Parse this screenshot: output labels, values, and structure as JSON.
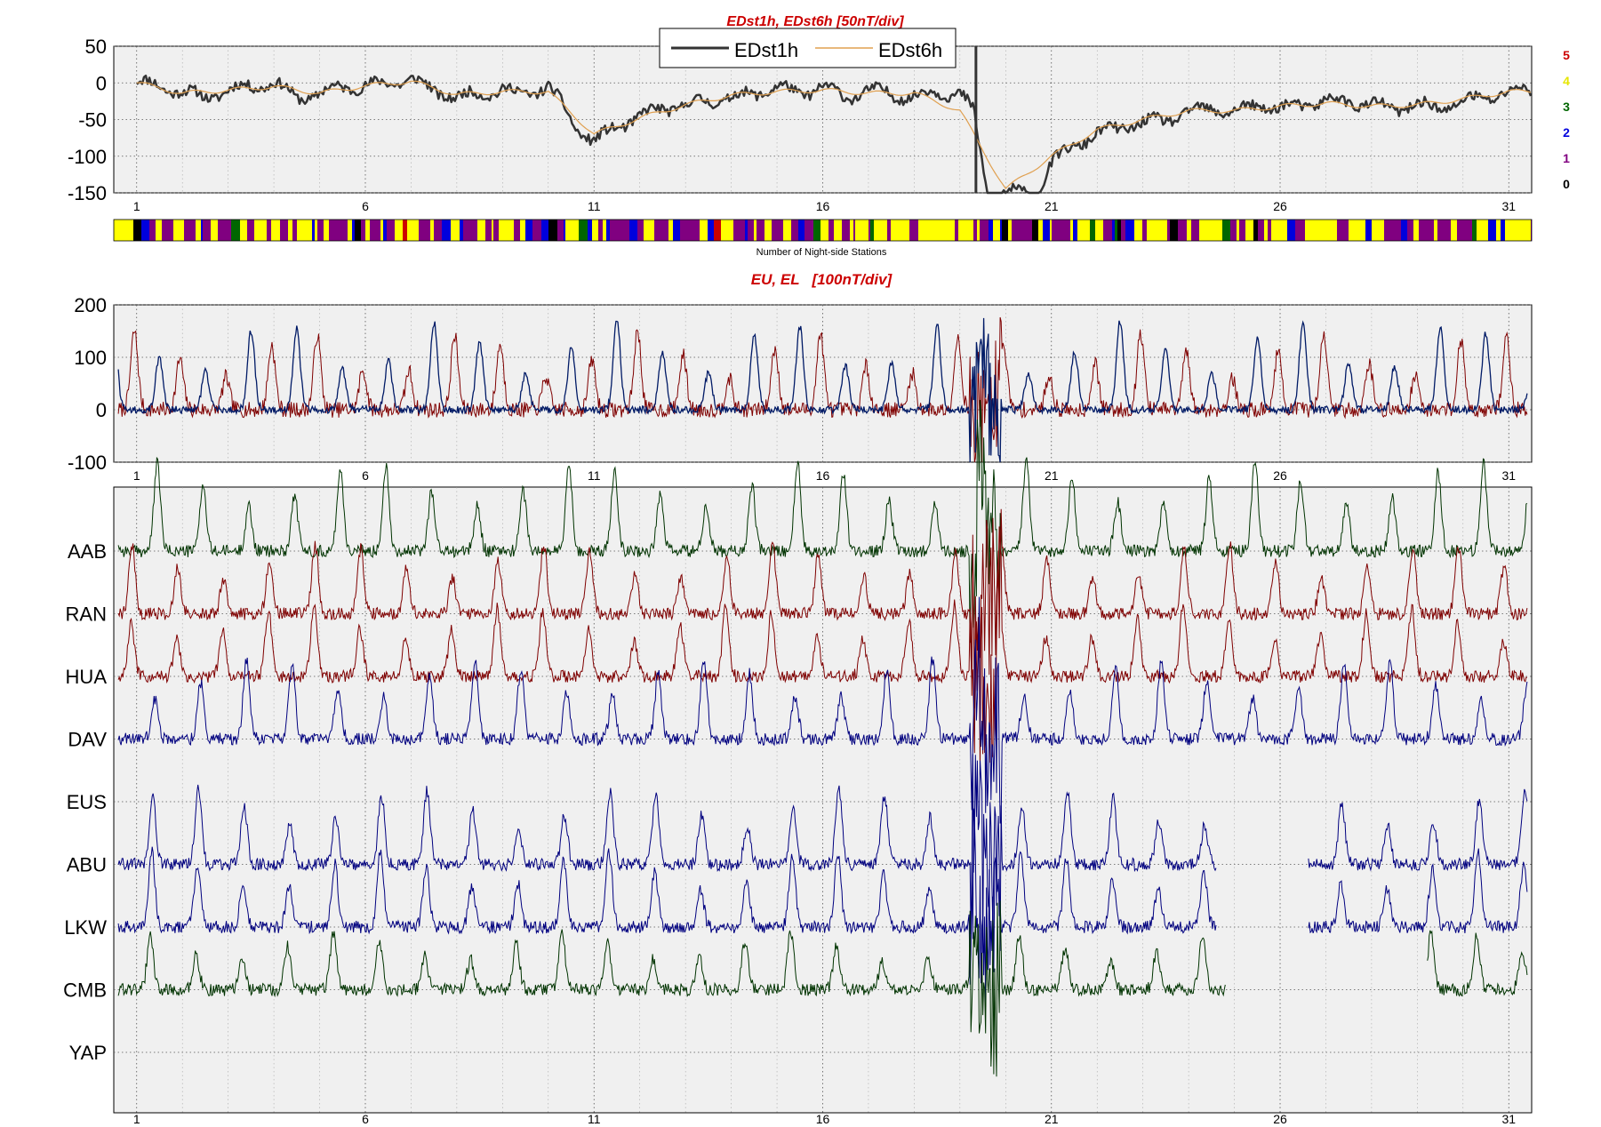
{
  "chart_data": [
    {
      "type": "line",
      "title": "EDst1h, EDst6h [50nT/div]",
      "x": [
        1,
        6,
        11,
        16,
        21,
        26,
        31
      ],
      "x_tick_labels": [
        "1",
        "6",
        "11",
        "16",
        "21",
        "26",
        "31"
      ],
      "xlim": [
        0.5,
        31.5
      ],
      "ylim": [
        -150,
        50
      ],
      "y_ticks": [
        50,
        0,
        -50,
        -100,
        -150
      ],
      "grid": true,
      "legend_placement": "top-center",
      "series": [
        {
          "name": "EDst1h",
          "color": "#333333",
          "x": [
            1,
            1.5,
            2,
            2.5,
            3,
            3.5,
            4,
            4.5,
            5,
            5.5,
            6,
            6.5,
            7,
            7.5,
            8,
            8.5,
            9,
            9.5,
            10,
            10.3,
            10.6,
            11,
            11.5,
            12,
            12.5,
            13,
            13.5,
            14,
            14.5,
            15,
            15.5,
            16,
            16.5,
            17,
            17.5,
            18,
            18.5,
            19,
            19.3,
            19.6,
            20,
            20.4,
            20.7,
            21,
            21.5,
            22,
            22.5,
            23,
            23.5,
            24,
            24.5,
            25,
            25.5,
            26,
            26.5,
            27,
            27.5,
            28,
            28.5,
            29,
            29.5,
            30,
            30.5,
            31,
            31.5
          ],
          "values": [
            2,
            -5,
            -12,
            -20,
            -10,
            -5,
            0,
            -20,
            -15,
            -5,
            -5,
            0,
            5,
            -10,
            -20,
            -15,
            -10,
            -15,
            -5,
            -30,
            -60,
            -80,
            -60,
            -45,
            -35,
            -30,
            -25,
            -20,
            -15,
            -5,
            -15,
            -5,
            -20,
            -10,
            -15,
            -20,
            -12,
            -15,
            -40,
            -150,
            -150,
            -150,
            -150,
            -110,
            -85,
            -70,
            -60,
            -55,
            -50,
            -40,
            -35,
            -40,
            -30,
            -35,
            -30,
            -25,
            -25,
            -30,
            -35,
            -30,
            -35,
            -25,
            -20,
            -12,
            -10
          ]
        },
        {
          "name": "EDst6h",
          "color": "#e0a050",
          "x": [
            1,
            2,
            3,
            4,
            5,
            6,
            7,
            8,
            9,
            10,
            11,
            12,
            13,
            14,
            15,
            16,
            17,
            18,
            19,
            20,
            21,
            22,
            23,
            24,
            25,
            26,
            27,
            28,
            29,
            30,
            31
          ],
          "values": [
            0,
            -14,
            -10,
            -5,
            -14,
            -4,
            2,
            -16,
            -12,
            -12,
            -70,
            -48,
            -30,
            -17,
            -12,
            -10,
            -14,
            -14,
            -38,
            -145,
            -100,
            -64,
            -50,
            -38,
            -38,
            -32,
            -28,
            -32,
            -30,
            -22,
            -12
          ]
        }
      ],
      "colorbar": {
        "label": "Number of Night-side Stations",
        "levels": [
          {
            "label": "5",
            "color": "#cc0000"
          },
          {
            "label": "4",
            "color": "#ffff00"
          },
          {
            "label": "3",
            "color": "#006600"
          },
          {
            "label": "2",
            "color": "#0000dd"
          },
          {
            "label": "1",
            "color": "#800080"
          },
          {
            "label": "0",
            "color": "#000000"
          }
        ]
      }
    },
    {
      "type": "line",
      "title": "EU, EL   [100nT/div]",
      "x": [
        1,
        6,
        11,
        16,
        21,
        26,
        31
      ],
      "x_tick_labels": [
        "1",
        "6",
        "11",
        "16",
        "21",
        "26",
        "31"
      ],
      "xlim": [
        0.5,
        31.5
      ],
      "ylim": [
        -100,
        200
      ],
      "y_ticks": [
        200,
        100,
        0,
        -100
      ],
      "grid": true,
      "series": [
        {
          "color": "#7f0000",
          "daily_peak_nT": 150
        },
        {
          "color": "#001a66",
          "daily_peak_nT": 170
        }
      ]
    },
    {
      "type": "line",
      "x": [
        1,
        6,
        11,
        16,
        21,
        26,
        31
      ],
      "x_tick_labels": [
        "1",
        "6",
        "11",
        "16",
        "21",
        "26",
        "31"
      ],
      "xlim": [
        0.5,
        31.5
      ],
      "grid": true,
      "stations": [
        "AAB",
        "RAN",
        "HUA",
        "DAV",
        "EUS",
        "ABU",
        "LKW",
        "CMB",
        "YAP"
      ],
      "series": [
        {
          "name": "AAB",
          "color": "#003300"
        },
        {
          "name": "RAN",
          "color": "#7f0000"
        },
        {
          "name": "HUA",
          "color": "#7f0000"
        },
        {
          "name": "DAV",
          "color": "#00007f"
        },
        {
          "name": "EUS",
          "color": "#00007f"
        },
        {
          "name": "ABU",
          "color": "#00007f"
        },
        {
          "name": "LKW",
          "color": "#00007f"
        },
        {
          "name": "CMB",
          "color": "#003300"
        },
        {
          "name": "YAP",
          "color": "#003300"
        }
      ]
    }
  ]
}
